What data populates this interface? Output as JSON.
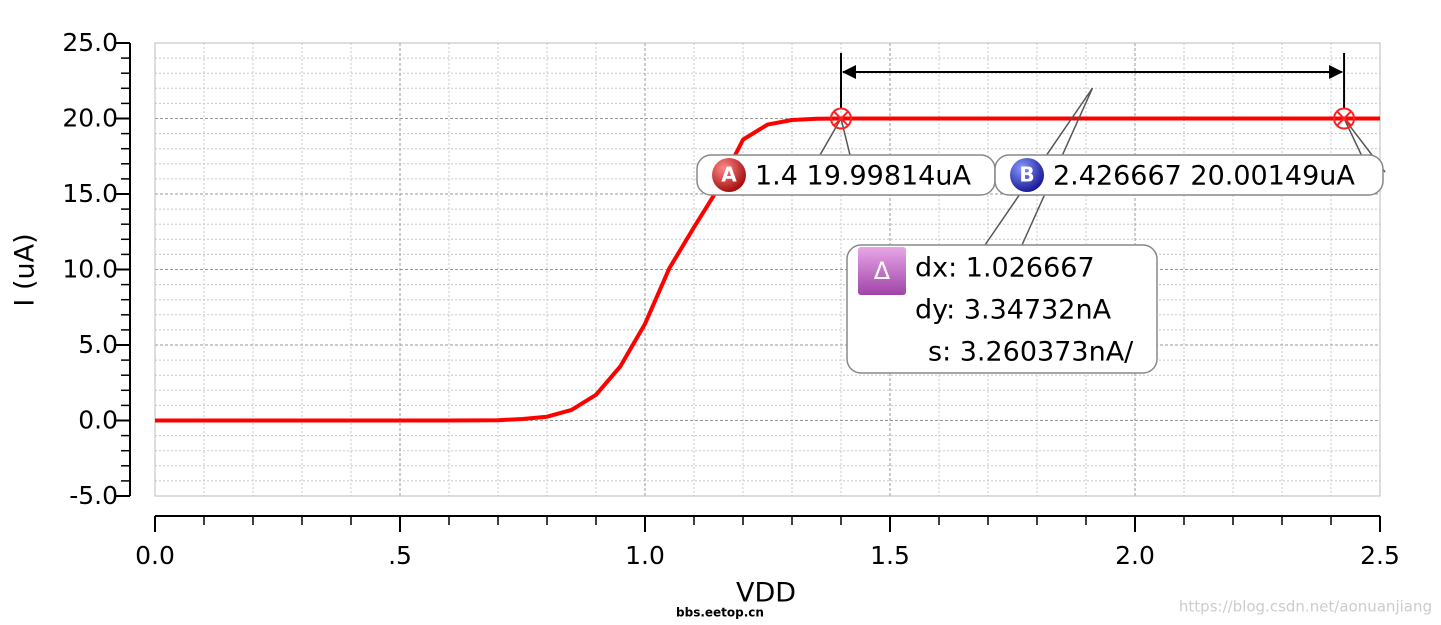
{
  "chart_data": {
    "type": "line",
    "xlabel": "VDD",
    "ylabel": "I (uA)",
    "x": [
      0,
      0.5,
      0.6,
      0.7,
      0.75,
      0.8,
      0.85,
      0.9,
      0.95,
      1.0,
      1.05,
      1.1,
      1.15,
      1.2,
      1.25,
      1.3,
      1.35,
      1.4,
      1.5,
      2.0,
      2.5
    ],
    "series": [
      {
        "color": "#ff0000",
        "values": [
          0,
          0,
          0,
          0.02,
          0.1,
          0.25,
          0.7,
          1.7,
          3.6,
          6.4,
          10.1,
          12.8,
          15.4,
          18.6,
          19.6,
          19.9,
          19.98,
          19.998,
          20,
          20,
          20
        ]
      }
    ],
    "xlim": [
      0,
      2.5
    ],
    "ylim": [
      -5,
      25
    ],
    "xticks": [
      {
        "value": 0,
        "label": "0.0"
      },
      {
        "value": 0.5,
        "label": ".5"
      },
      {
        "value": 1,
        "label": "1.0"
      },
      {
        "value": 1.5,
        "label": "1.5"
      },
      {
        "value": 2,
        "label": "2.0"
      },
      {
        "value": 2.5,
        "label": "2.5"
      }
    ],
    "yticks": [
      {
        "value": -5,
        "label": "-5.0"
      },
      {
        "value": 0,
        "label": "0.0"
      },
      {
        "value": 5,
        "label": "5.0"
      },
      {
        "value": 10,
        "label": "10.0"
      },
      {
        "value": 15,
        "label": "15.0"
      },
      {
        "value": 20,
        "label": "20.0"
      },
      {
        "value": 25,
        "label": "25.0"
      }
    ],
    "grid": true,
    "markers": [
      {
        "label": "A",
        "x": 1.4,
        "y": 19.99814,
        "text": "1.4 19.99814uA",
        "color": "#c40000"
      },
      {
        "label": "B",
        "x": 2.426667,
        "y": 20.00149,
        "text": "2.426667 20.00149uA",
        "color": "#1a1ab0"
      }
    ],
    "delta": {
      "label": "Δ",
      "lines": [
        "dx: 1.026667",
        "dy: 3.34732nA",
        "s: 3.260373nA/"
      ]
    }
  },
  "watermarks": [
    "bbs.eetop.cn",
    "https://blog.csdn.net/aonuanjiang"
  ]
}
